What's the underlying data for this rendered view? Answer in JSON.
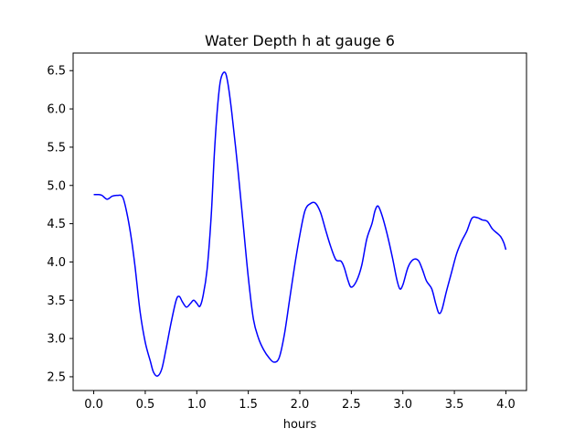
{
  "chart_data": {
    "type": "line",
    "title": "Water Depth h at gauge 6",
    "xlabel": "hours",
    "ylabel": "",
    "xlim": [
      -0.2,
      4.2
    ],
    "ylim": [
      2.32,
      6.73
    ],
    "grid": false,
    "x_ticks": [
      "0.0",
      "0.5",
      "1.0",
      "1.5",
      "2.0",
      "2.5",
      "3.0",
      "3.5",
      "4.0"
    ],
    "y_ticks": [
      "2.5",
      "3.0",
      "3.5",
      "4.0",
      "4.5",
      "5.0",
      "5.5",
      "6.0",
      "6.5"
    ],
    "series": [
      {
        "color": "#0000ff",
        "points": [
          [
            0.0,
            4.88
          ],
          [
            0.05,
            4.88
          ],
          [
            0.08,
            4.87
          ],
          [
            0.13,
            4.82
          ],
          [
            0.18,
            4.86
          ],
          [
            0.23,
            4.87
          ],
          [
            0.28,
            4.85
          ],
          [
            0.32,
            4.65
          ],
          [
            0.36,
            4.35
          ],
          [
            0.4,
            3.95
          ],
          [
            0.45,
            3.35
          ],
          [
            0.5,
            2.95
          ],
          [
            0.55,
            2.7
          ],
          [
            0.58,
            2.56
          ],
          [
            0.62,
            2.51
          ],
          [
            0.66,
            2.6
          ],
          [
            0.7,
            2.85
          ],
          [
            0.75,
            3.2
          ],
          [
            0.8,
            3.5
          ],
          [
            0.83,
            3.55
          ],
          [
            0.86,
            3.48
          ],
          [
            0.9,
            3.41
          ],
          [
            0.94,
            3.46
          ],
          [
            0.97,
            3.5
          ],
          [
            1.0,
            3.46
          ],
          [
            1.03,
            3.42
          ],
          [
            1.06,
            3.55
          ],
          [
            1.1,
            3.9
          ],
          [
            1.14,
            4.6
          ],
          [
            1.17,
            5.4
          ],
          [
            1.2,
            6.0
          ],
          [
            1.23,
            6.37
          ],
          [
            1.27,
            6.48
          ],
          [
            1.3,
            6.35
          ],
          [
            1.34,
            5.95
          ],
          [
            1.4,
            5.2
          ],
          [
            1.45,
            4.5
          ],
          [
            1.5,
            3.8
          ],
          [
            1.55,
            3.25
          ],
          [
            1.6,
            3.0
          ],
          [
            1.65,
            2.85
          ],
          [
            1.7,
            2.75
          ],
          [
            1.75,
            2.69
          ],
          [
            1.8,
            2.75
          ],
          [
            1.85,
            3.05
          ],
          [
            1.9,
            3.5
          ],
          [
            1.95,
            3.95
          ],
          [
            2.0,
            4.35
          ],
          [
            2.05,
            4.67
          ],
          [
            2.1,
            4.76
          ],
          [
            2.15,
            4.77
          ],
          [
            2.2,
            4.65
          ],
          [
            2.25,
            4.42
          ],
          [
            2.3,
            4.2
          ],
          [
            2.35,
            4.03
          ],
          [
            2.4,
            4.01
          ],
          [
            2.43,
            3.93
          ],
          [
            2.47,
            3.75
          ],
          [
            2.5,
            3.67
          ],
          [
            2.55,
            3.75
          ],
          [
            2.6,
            3.95
          ],
          [
            2.65,
            4.3
          ],
          [
            2.7,
            4.5
          ],
          [
            2.73,
            4.67
          ],
          [
            2.76,
            4.73
          ],
          [
            2.8,
            4.6
          ],
          [
            2.85,
            4.35
          ],
          [
            2.9,
            4.05
          ],
          [
            2.94,
            3.78
          ],
          [
            2.97,
            3.65
          ],
          [
            3.0,
            3.7
          ],
          [
            3.05,
            3.93
          ],
          [
            3.1,
            4.03
          ],
          [
            3.15,
            4.02
          ],
          [
            3.19,
            3.9
          ],
          [
            3.23,
            3.75
          ],
          [
            3.28,
            3.65
          ],
          [
            3.32,
            3.45
          ],
          [
            3.35,
            3.33
          ],
          [
            3.38,
            3.38
          ],
          [
            3.42,
            3.6
          ],
          [
            3.47,
            3.85
          ],
          [
            3.52,
            4.1
          ],
          [
            3.57,
            4.27
          ],
          [
            3.62,
            4.4
          ],
          [
            3.67,
            4.57
          ],
          [
            3.72,
            4.58
          ],
          [
            3.77,
            4.55
          ],
          [
            3.82,
            4.53
          ],
          [
            3.87,
            4.43
          ],
          [
            3.92,
            4.37
          ],
          [
            3.95,
            4.33
          ],
          [
            3.98,
            4.25
          ],
          [
            4.0,
            4.16
          ]
        ]
      }
    ]
  }
}
